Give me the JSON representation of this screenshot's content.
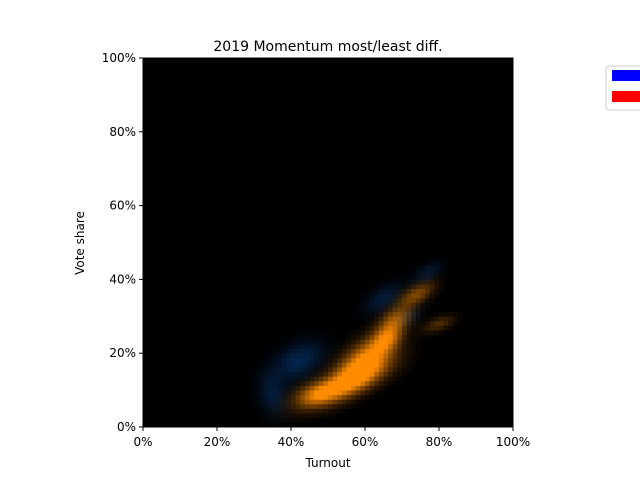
{
  "chart_data": {
    "type": "heatmap",
    "title": "2019 Momentum most/least diff.",
    "xlabel": "Turnout",
    "ylabel": "Vote share",
    "xlim": [
      0,
      100
    ],
    "ylim": [
      0,
      100
    ],
    "x_ticks": [
      "0%",
      "20%",
      "40%",
      "60%",
      "80%",
      "100%"
    ],
    "y_ticks": [
      "0%",
      "20%",
      "40%",
      "60%",
      "80%",
      "100%"
    ],
    "grid": false,
    "legend_placement": "top-right (outside)",
    "series": [
      {
        "color": "#ff8c00",
        "blobs": [
          {
            "x": 60,
            "y": 18,
            "sx": 6,
            "sy": 3,
            "angle": 40,
            "intensity": 1.0
          },
          {
            "x": 55,
            "y": 12,
            "sx": 8,
            "sy": 2.5,
            "angle": 25,
            "intensity": 0.85
          },
          {
            "x": 47,
            "y": 9,
            "sx": 4,
            "sy": 2,
            "angle": 15,
            "intensity": 0.55
          },
          {
            "x": 68,
            "y": 29,
            "sx": 3.5,
            "sy": 2,
            "angle": 40,
            "intensity": 0.55
          },
          {
            "x": 74,
            "y": 36,
            "sx": 3.5,
            "sy": 1.6,
            "angle": 30,
            "intensity": 0.5
          },
          {
            "x": 80,
            "y": 28,
            "sx": 3,
            "sy": 1.2,
            "angle": 20,
            "intensity": 0.3
          },
          {
            "x": 66,
            "y": 24,
            "sx": 3,
            "sy": 2,
            "angle": 40,
            "intensity": 0.6
          }
        ]
      },
      {
        "color": "#0a4a99",
        "blobs": [
          {
            "x": 42,
            "y": 18,
            "sx": 5,
            "sy": 3,
            "angle": 30,
            "intensity": 0.5
          },
          {
            "x": 35,
            "y": 9,
            "sx": 2.5,
            "sy": 4,
            "angle": 10,
            "intensity": 0.35
          },
          {
            "x": 65,
            "y": 35,
            "sx": 4,
            "sy": 2,
            "angle": 35,
            "intensity": 0.35
          },
          {
            "x": 77,
            "y": 42,
            "sx": 3,
            "sy": 1.5,
            "angle": 30,
            "intensity": 0.3
          },
          {
            "x": 72,
            "y": 30,
            "sx": 2.5,
            "sy": 1.5,
            "angle": 30,
            "intensity": 0.25
          }
        ]
      }
    ],
    "legend": [
      {
        "color": "#0000ff"
      },
      {
        "color": "#ff0000"
      }
    ]
  }
}
